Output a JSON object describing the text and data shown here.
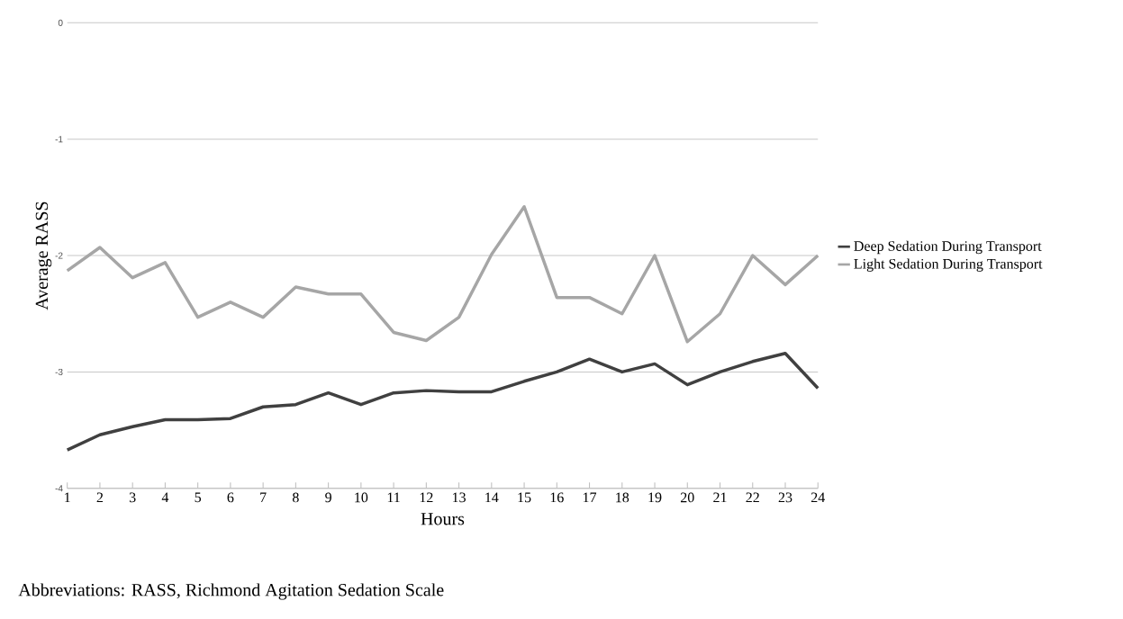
{
  "chart_data": {
    "type": "line",
    "xlabel": "Hours",
    "ylabel": "Average RASS",
    "categories": [
      "1",
      "2",
      "3",
      "4",
      "5",
      "6",
      "7",
      "8",
      "9",
      "10",
      "11",
      "12",
      "13",
      "14",
      "15",
      "16",
      "17",
      "18",
      "19",
      "20",
      "21",
      "22",
      "23",
      "24"
    ],
    "series": [
      {
        "name": "Deep Sedation During Transport",
        "color": "#404040",
        "values": [
          -3.67,
          -3.54,
          -3.47,
          -3.41,
          -3.41,
          -3.4,
          -3.3,
          -3.28,
          -3.18,
          -3.28,
          -3.18,
          -3.16,
          -3.17,
          -3.17,
          -3.08,
          -3.0,
          -2.89,
          -3.0,
          -2.93,
          -3.11,
          -3.0,
          -2.91,
          -2.84,
          -3.14
        ]
      },
      {
        "name": "Light Sedation During Transport",
        "color": "#a6a6a6",
        "values": [
          -2.13,
          -1.93,
          -2.19,
          -2.06,
          -2.53,
          -2.4,
          -2.53,
          -2.27,
          -2.33,
          -2.33,
          -2.66,
          -2.73,
          -2.53,
          -1.99,
          -1.58,
          -2.36,
          -2.36,
          -2.5,
          -2.0,
          -2.74,
          -2.5,
          -2.0,
          -2.25,
          -2.0
        ]
      }
    ],
    "ylim": [
      -4,
      0
    ],
    "yticks": [
      -4,
      -3,
      -2,
      -1,
      0
    ],
    "grid": "y",
    "legend": "right",
    "annotations": [
      "Abbreviations: RASS, Richmond Agitation Sedation Scale"
    ]
  }
}
